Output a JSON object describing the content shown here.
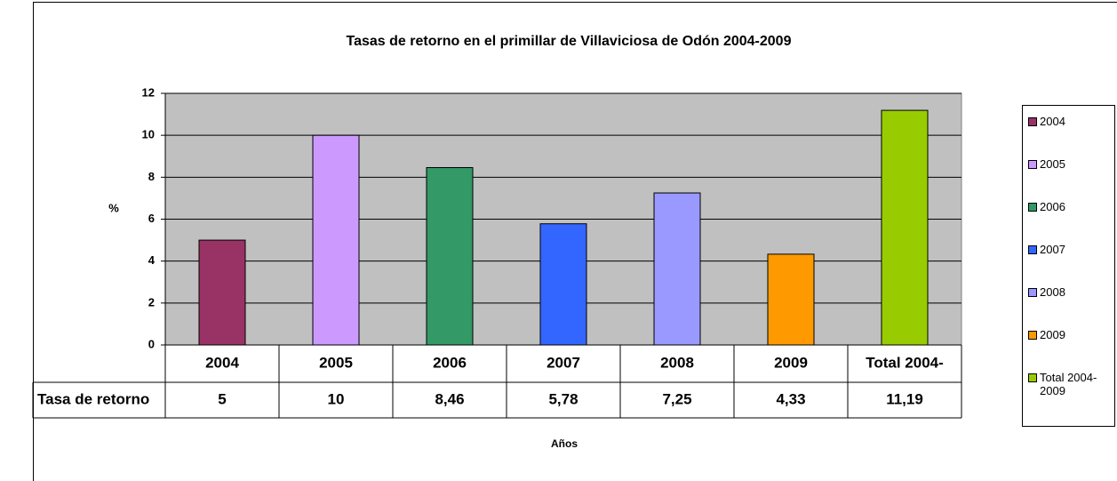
{
  "chart_data": {
    "type": "bar",
    "title": "Tasas de retorno en el primillar de Villaviciosa de Odón 2004-2009",
    "y_label": "%",
    "x_label": "Años",
    "categories": [
      "2004",
      "2005",
      "2006",
      "2007",
      "2008",
      "2009",
      "Total 2004-"
    ],
    "legend": [
      "2004",
      "2005",
      "2006",
      "2007",
      "2008",
      "2009",
      "Total 2004-2009"
    ],
    "colors": [
      "#993366",
      "#cc99ff",
      "#339966",
      "#3366ff",
      "#9999ff",
      "#ff9900",
      "#99cc00"
    ],
    "row_label": "Tasa de retorno",
    "values": [
      5,
      10,
      8.46,
      5.78,
      7.25,
      4.33,
      11.19
    ],
    "value_labels": [
      "5",
      "10",
      "8,46",
      "5,78",
      "7,25",
      "4,33",
      "11,19"
    ],
    "ylim": [
      0,
      12
    ],
    "yticks": [
      0,
      2,
      4,
      6,
      8,
      10,
      12
    ],
    "grid": true,
    "legend_position": "right"
  }
}
